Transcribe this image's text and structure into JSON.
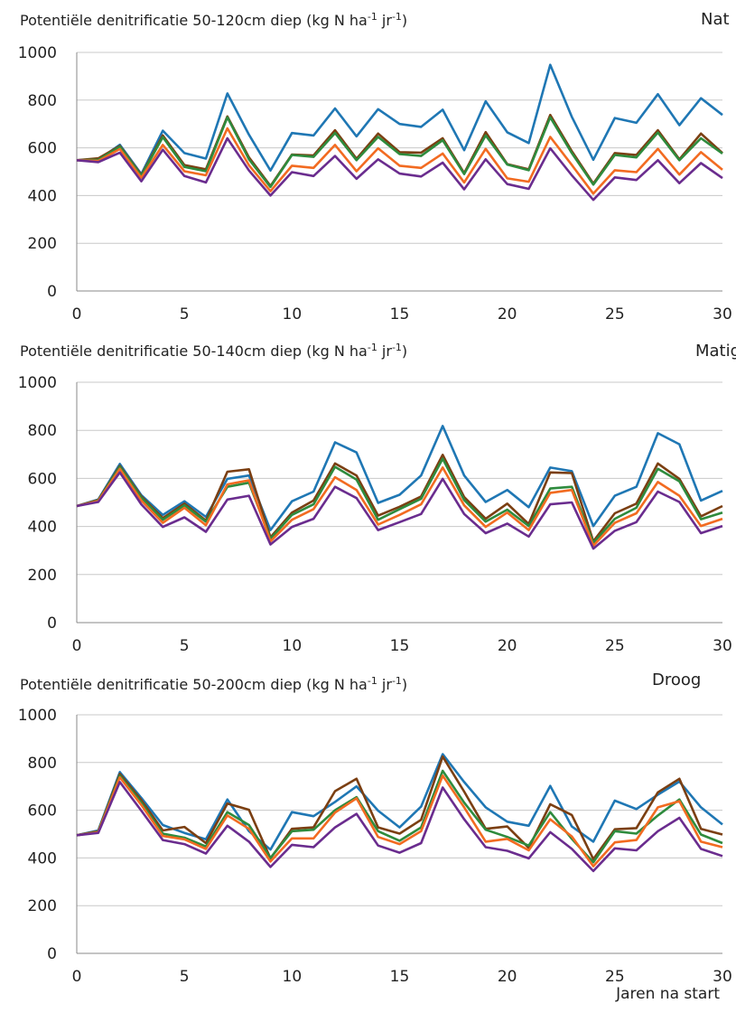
{
  "xlabel": "Jaren na start",
  "colors": {
    "blue": "#1f77b4",
    "brown": "#7b3f12",
    "green": "#2e8b3d",
    "orange": "#f26b21",
    "purple": "#6a2c8e"
  },
  "chart_data": [
    {
      "type": "line",
      "title": "Potentiële denitrificatie 50-120cm diep (kg N ha-1 jr-1)",
      "title_parts": [
        "Potentiële denitrificatie 50-120cm diep (kg N ha",
        "-1",
        " jr",
        "-1",
        ")"
      ],
      "corner_label": "Nat",
      "xlim": [
        0,
        30
      ],
      "ylim": [
        0,
        1000
      ],
      "xticks": [
        0,
        5,
        10,
        15,
        20,
        25,
        30
      ],
      "yticks": [
        0,
        200,
        400,
        600,
        800,
        1000
      ],
      "grid": true,
      "x": [
        0,
        1,
        2,
        3,
        4,
        5,
        6,
        7,
        8,
        9,
        10,
        11,
        12,
        13,
        14,
        15,
        16,
        17,
        18,
        19,
        20,
        21,
        22,
        23,
        24,
        25,
        26,
        27,
        28,
        29,
        30
      ],
      "series": [
        {
          "color": "#1f77b4",
          "values": [
            548,
            550,
            613,
            490,
            672,
            578,
            555,
            828,
            655,
            505,
            662,
            652,
            765,
            648,
            762,
            700,
            688,
            760,
            590,
            795,
            665,
            620,
            948,
            730,
            550,
            725,
            705,
            825,
            695,
            808,
            738
          ]
        },
        {
          "color": "#7b3f12",
          "values": [
            548,
            556,
            608,
            486,
            652,
            528,
            510,
            732,
            560,
            440,
            572,
            568,
            674,
            554,
            660,
            582,
            580,
            640,
            494,
            666,
            532,
            510,
            738,
            586,
            450,
            578,
            570,
            674,
            552,
            660,
            578
          ]
        },
        {
          "color": "#2e8b3d",
          "values": [
            548,
            550,
            605,
            483,
            645,
            520,
            502,
            728,
            552,
            436,
            570,
            562,
            662,
            548,
            646,
            574,
            566,
            632,
            490,
            652,
            530,
            506,
            728,
            578,
            446,
            570,
            560,
            664,
            548,
            640,
            576
          ]
        },
        {
          "color": "#f26b21",
          "values": [
            548,
            545,
            595,
            475,
            612,
            502,
            485,
            682,
            527,
            418,
            525,
            516,
            612,
            502,
            598,
            525,
            516,
            576,
            455,
            596,
            472,
            458,
            646,
            528,
            408,
            506,
            498,
            596,
            488,
            582,
            508
          ]
        },
        {
          "color": "#6a2c8e",
          "values": [
            548,
            540,
            580,
            460,
            592,
            482,
            455,
            640,
            505,
            400,
            498,
            482,
            566,
            470,
            552,
            492,
            480,
            538,
            426,
            552,
            448,
            428,
            598,
            485,
            382,
            476,
            465,
            548,
            452,
            536,
            473
          ]
        }
      ]
    },
    {
      "type": "line",
      "title": "Potentiële denitrificatie 50-140cm diep (kg N ha-1 jr-1)",
      "title_parts": [
        "Potentiële denitrificatie 50-140cm diep (kg N ha",
        "-1",
        " jr",
        "-1",
        ")"
      ],
      "corner_label": "Matig",
      "xlim": [
        0,
        30
      ],
      "ylim": [
        0,
        1000
      ],
      "xticks": [
        0,
        5,
        10,
        15,
        20,
        25,
        30
      ],
      "yticks": [
        0,
        200,
        400,
        600,
        800,
        1000
      ],
      "grid": true,
      "x": [
        0,
        1,
        2,
        3,
        4,
        5,
        6,
        7,
        8,
        9,
        10,
        11,
        12,
        13,
        14,
        15,
        16,
        17,
        18,
        19,
        20,
        21,
        22,
        23,
        24,
        25,
        26,
        27,
        28,
        29,
        30
      ],
      "series": [
        {
          "color": "#1f77b4",
          "values": [
            485,
            512,
            660,
            530,
            448,
            505,
            440,
            598,
            612,
            385,
            505,
            545,
            750,
            708,
            498,
            532,
            612,
            818,
            612,
            502,
            552,
            480,
            645,
            630,
            402,
            528,
            565,
            788,
            742,
            508,
            548
          ]
        },
        {
          "color": "#7b3f12",
          "values": [
            485,
            510,
            652,
            525,
            435,
            495,
            425,
            628,
            638,
            355,
            458,
            508,
            662,
            612,
            445,
            482,
            525,
            698,
            522,
            432,
            495,
            410,
            625,
            622,
            338,
            455,
            495,
            662,
            598,
            442,
            485
          ]
        },
        {
          "color": "#2e8b3d",
          "values": [
            485,
            508,
            648,
            520,
            428,
            488,
            420,
            565,
            582,
            348,
            448,
            492,
            648,
            595,
            428,
            472,
            515,
            682,
            510,
            420,
            470,
            402,
            558,
            565,
            332,
            432,
            478,
            640,
            588,
            430,
            458
          ]
        },
        {
          "color": "#f26b21",
          "values": [
            485,
            506,
            640,
            508,
            415,
            478,
            405,
            575,
            592,
            338,
            428,
            472,
            605,
            552,
            408,
            448,
            492,
            645,
            488,
            398,
            458,
            385,
            540,
            552,
            320,
            415,
            455,
            585,
            528,
            402,
            432
          ]
        },
        {
          "color": "#6a2c8e",
          "values": [
            485,
            502,
            625,
            492,
            398,
            438,
            378,
            512,
            528,
            325,
            398,
            432,
            565,
            518,
            385,
            418,
            452,
            598,
            452,
            372,
            412,
            358,
            492,
            500,
            308,
            382,
            418,
            545,
            502,
            372,
            402
          ]
        }
      ]
    },
    {
      "type": "line",
      "title": "Potentiële denitrificatie 50-200cm diep (kg N ha-1 jr-1)",
      "title_parts": [
        "Potentiële denitrificatie 50-200cm diep (kg N ha",
        "-1",
        " jr",
        "-1",
        ")"
      ],
      "corner_label": "Droog",
      "xlim": [
        0,
        30
      ],
      "ylim": [
        0,
        1000
      ],
      "xticks": [
        0,
        5,
        10,
        15,
        20,
        25,
        30
      ],
      "yticks": [
        0,
        200,
        400,
        600,
        800,
        1000
      ],
      "grid": true,
      "x": [
        0,
        1,
        2,
        3,
        4,
        5,
        6,
        7,
        8,
        9,
        10,
        11,
        12,
        13,
        14,
        15,
        16,
        17,
        18,
        19,
        20,
        21,
        22,
        23,
        24,
        25,
        26,
        27,
        28,
        29,
        30
      ],
      "series": [
        {
          "color": "#1f77b4",
          "values": [
            495,
            515,
            760,
            652,
            538,
            505,
            478,
            645,
            512,
            435,
            592,
            575,
            635,
            700,
            598,
            528,
            615,
            835,
            718,
            612,
            552,
            535,
            702,
            532,
            468,
            640,
            605,
            665,
            720,
            612,
            540
          ]
        },
        {
          "color": "#7b3f12",
          "values": [
            495,
            512,
            752,
            642,
            515,
            530,
            462,
            628,
            602,
            398,
            522,
            528,
            680,
            732,
            528,
            502,
            560,
            825,
            678,
            522,
            532,
            442,
            625,
            580,
            395,
            520,
            525,
            675,
            732,
            522,
            498
          ]
        },
        {
          "color": "#2e8b3d",
          "values": [
            495,
            510,
            745,
            632,
            502,
            485,
            448,
            592,
            538,
            400,
            512,
            518,
            600,
            655,
            512,
            472,
            528,
            765,
            632,
            518,
            488,
            452,
            592,
            480,
            382,
            512,
            502,
            578,
            645,
            498,
            462
          ]
        },
        {
          "color": "#f26b21",
          "values": [
            495,
            508,
            738,
            622,
            492,
            478,
            438,
            578,
            522,
            385,
            482,
            482,
            590,
            650,
            488,
            458,
            512,
            745,
            612,
            468,
            480,
            432,
            562,
            490,
            365,
            465,
            475,
            612,
            638,
            468,
            445
          ]
        },
        {
          "color": "#6a2c8e",
          "values": [
            495,
            505,
            718,
            598,
            475,
            458,
            418,
            535,
            468,
            362,
            455,
            445,
            528,
            585,
            452,
            422,
            462,
            695,
            562,
            445,
            430,
            398,
            508,
            438,
            345,
            440,
            432,
            512,
            568,
            438,
            408
          ]
        }
      ]
    }
  ]
}
